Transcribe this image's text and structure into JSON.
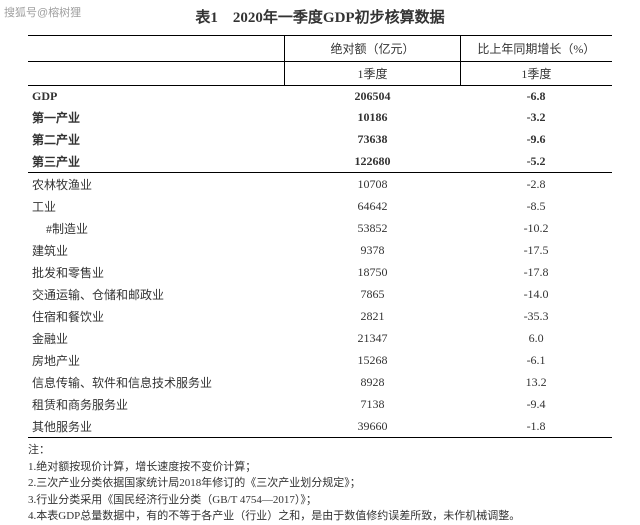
{
  "watermark": "搜狐号@榕树狸",
  "title": "表1　2020年一季度GDP初步核算数据",
  "header": {
    "abs_label": "绝对额（亿元）",
    "yoy_label": "比上年同期增长（%）",
    "period": "1季度"
  },
  "section1": [
    {
      "label": "GDP",
      "abs": "206504",
      "yoy": "-6.8"
    },
    {
      "label": "第一产业",
      "abs": "10186",
      "yoy": "-3.2"
    },
    {
      "label": "第二产业",
      "abs": "73638",
      "yoy": "-9.6"
    },
    {
      "label": "第三产业",
      "abs": "122680",
      "yoy": "-5.2"
    }
  ],
  "section2": [
    {
      "label": "农林牧渔业",
      "abs": "10708",
      "yoy": "-2.8",
      "indent": 0
    },
    {
      "label": "工业",
      "abs": "64642",
      "yoy": "-8.5",
      "indent": 0
    },
    {
      "label": "#制造业",
      "abs": "53852",
      "yoy": "-10.2",
      "indent": 1
    },
    {
      "label": "建筑业",
      "abs": "9378",
      "yoy": "-17.5",
      "indent": 0
    },
    {
      "label": "批发和零售业",
      "abs": "18750",
      "yoy": "-17.8",
      "indent": 0
    },
    {
      "label": "交通运输、仓储和邮政业",
      "abs": "7865",
      "yoy": "-14.0",
      "indent": 0
    },
    {
      "label": "住宿和餐饮业",
      "abs": "2821",
      "yoy": "-35.3",
      "indent": 0
    },
    {
      "label": "金融业",
      "abs": "21347",
      "yoy": "6.0",
      "indent": 0
    },
    {
      "label": "房地产业",
      "abs": "15268",
      "yoy": "-6.1",
      "indent": 0
    },
    {
      "label": "信息传输、软件和信息技术服务业",
      "abs": "8928",
      "yoy": "13.2",
      "indent": 0
    },
    {
      "label": "租赁和商务服务业",
      "abs": "7138",
      "yoy": "-9.4",
      "indent": 0
    },
    {
      "label": "其他服务业",
      "abs": "39660",
      "yoy": "-1.8",
      "indent": 0
    }
  ],
  "notes": {
    "lead": "注：",
    "items": [
      "1.绝对额按现价计算，增长速度按不变价计算；",
      "2.三次产业分类依据国家统计局2018年修订的《三次产业划分规定》；",
      "3.行业分类采用《国民经济行业分类（GB/T 4754—2017）》；",
      "4.本表GDP总量数据中，有的不等于各产业（行业）之和，是由于数值修约误差所致，未作机械调整。"
    ]
  },
  "colors": {
    "text": "#333333",
    "border": "#000000",
    "background": "#ffffff",
    "watermark": "#888888"
  }
}
